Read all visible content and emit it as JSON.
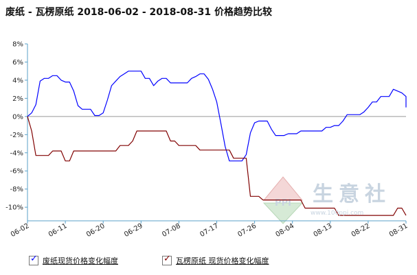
{
  "title": "废纸 - 瓦楞原纸 2018-06-02 - 2018-08-31 价格趋势比较",
  "watermark": {
    "brand": "生意社",
    "url": "www.100ppi.com",
    "logo_text": "PPI"
  },
  "legend": [
    {
      "label": "废纸现货价格变化幅度",
      "color": "#0000ff"
    },
    {
      "label": "瓦楞原纸 现货价格变化幅度",
      "color": "#800000"
    }
  ],
  "chart_data": {
    "type": "line",
    "x_start": "2018-06-02",
    "x_end": "2018-08-31",
    "x_tick_labels": [
      "06-02",
      "06-11",
      "06-20",
      "06-29",
      "07-08",
      "07-17",
      "07-26",
      "08-04",
      "08-13",
      "08-22",
      "08-31"
    ],
    "y_tick_labels": [
      "8%",
      "6%",
      "4%",
      "2%",
      "0%",
      "-2%",
      "-4%",
      "-6%",
      "-8%",
      "-10%"
    ],
    "ylim": [
      -11.5,
      8
    ],
    "grid": false,
    "legend_position": "bottom",
    "series": [
      {
        "name": "废纸现货价格变化幅度",
        "color": "#0000ff",
        "points": [
          [
            "06-02",
            0
          ],
          [
            "06-03",
            0.4
          ],
          [
            "06-04",
            1.3
          ],
          [
            "06-05",
            3.9
          ],
          [
            "06-06",
            4.2
          ],
          [
            "06-07",
            4.2
          ],
          [
            "06-08",
            4.5
          ],
          [
            "06-09",
            4.5
          ],
          [
            "06-10",
            4.0
          ],
          [
            "06-11",
            3.8
          ],
          [
            "06-12",
            3.8
          ],
          [
            "06-13",
            2.8
          ],
          [
            "06-14",
            1.2
          ],
          [
            "06-15",
            0.8
          ],
          [
            "06-16",
            0.8
          ],
          [
            "06-17",
            0.8
          ],
          [
            "06-18",
            0.1
          ],
          [
            "06-19",
            0.1
          ],
          [
            "06-20",
            0.4
          ],
          [
            "06-21",
            1.8
          ],
          [
            "06-22",
            3.4
          ],
          [
            "06-23",
            3.9
          ],
          [
            "06-24",
            4.4
          ],
          [
            "06-25",
            4.7
          ],
          [
            "06-26",
            5.0
          ],
          [
            "06-27",
            5.0
          ],
          [
            "06-28",
            5.0
          ],
          [
            "06-29",
            5.0
          ],
          [
            "06-30",
            4.2
          ],
          [
            "07-01",
            4.2
          ],
          [
            "07-02",
            3.4
          ],
          [
            "07-03",
            3.9
          ],
          [
            "07-04",
            4.2
          ],
          [
            "07-05",
            4.2
          ],
          [
            "07-06",
            3.7
          ],
          [
            "07-07",
            3.7
          ],
          [
            "07-08",
            3.7
          ],
          [
            "07-09",
            3.7
          ],
          [
            "07-10",
            3.7
          ],
          [
            "07-11",
            4.2
          ],
          [
            "07-12",
            4.4
          ],
          [
            "07-13",
            4.7
          ],
          [
            "07-14",
            4.7
          ],
          [
            "07-15",
            4.1
          ],
          [
            "07-16",
            3.0
          ],
          [
            "07-17",
            1.6
          ],
          [
            "07-18",
            -0.8
          ],
          [
            "07-19",
            -3.3
          ],
          [
            "07-20",
            -4.9
          ],
          [
            "07-21",
            -4.9
          ],
          [
            "07-22",
            -4.9
          ],
          [
            "07-23",
            -4.9
          ],
          [
            "07-24",
            -4.2
          ],
          [
            "07-25",
            -1.8
          ],
          [
            "07-26",
            -0.7
          ],
          [
            "07-27",
            -0.5
          ],
          [
            "07-28",
            -0.5
          ],
          [
            "07-29",
            -0.5
          ],
          [
            "07-30",
            -1.4
          ],
          [
            "07-31",
            -2.1
          ],
          [
            "08-01",
            -2.1
          ],
          [
            "08-02",
            -2.1
          ],
          [
            "08-03",
            -1.9
          ],
          [
            "08-04",
            -1.9
          ],
          [
            "08-05",
            -1.9
          ],
          [
            "08-06",
            -1.6
          ],
          [
            "08-07",
            -1.6
          ],
          [
            "08-08",
            -1.6
          ],
          [
            "08-09",
            -1.6
          ],
          [
            "08-10",
            -1.6
          ],
          [
            "08-11",
            -1.6
          ],
          [
            "08-12",
            -1.2
          ],
          [
            "08-13",
            -1.2
          ],
          [
            "08-14",
            -1.0
          ],
          [
            "08-15",
            -1.0
          ],
          [
            "08-16",
            -0.5
          ],
          [
            "08-17",
            0.2
          ],
          [
            "08-18",
            0.2
          ],
          [
            "08-19",
            0.2
          ],
          [
            "08-20",
            0.2
          ],
          [
            "08-21",
            0.5
          ],
          [
            "08-22",
            1.0
          ],
          [
            "08-23",
            1.6
          ],
          [
            "08-24",
            1.6
          ],
          [
            "08-25",
            2.2
          ],
          [
            "08-26",
            2.2
          ],
          [
            "08-27",
            2.2
          ],
          [
            "08-28",
            3.0
          ],
          [
            "08-29",
            2.8
          ],
          [
            "08-30",
            2.6
          ],
          [
            "08-31",
            2.2
          ],
          [
            "09-01",
            1.0
          ]
        ]
      },
      {
        "name": "瓦楞原纸 现货价格变化幅度",
        "color": "#800000",
        "points": [
          [
            "06-02",
            0
          ],
          [
            "06-03",
            -1.6
          ],
          [
            "06-04",
            -4.3
          ],
          [
            "06-05",
            -4.3
          ],
          [
            "06-06",
            -4.3
          ],
          [
            "06-07",
            -4.3
          ],
          [
            "06-08",
            -3.8
          ],
          [
            "06-09",
            -3.8
          ],
          [
            "06-10",
            -3.8
          ],
          [
            "06-11",
            -4.9
          ],
          [
            "06-12",
            -4.9
          ],
          [
            "06-13",
            -3.8
          ],
          [
            "06-14",
            -3.8
          ],
          [
            "06-15",
            -3.8
          ],
          [
            "06-16",
            -3.8
          ],
          [
            "06-17",
            -3.8
          ],
          [
            "06-18",
            -3.8
          ],
          [
            "06-19",
            -3.8
          ],
          [
            "06-20",
            -3.8
          ],
          [
            "06-21",
            -3.8
          ],
          [
            "06-22",
            -3.8
          ],
          [
            "06-23",
            -3.8
          ],
          [
            "06-24",
            -3.2
          ],
          [
            "06-25",
            -3.2
          ],
          [
            "06-26",
            -3.2
          ],
          [
            "06-27",
            -2.7
          ],
          [
            "06-28",
            -1.6
          ],
          [
            "06-29",
            -1.6
          ],
          [
            "06-30",
            -1.6
          ],
          [
            "07-01",
            -1.6
          ],
          [
            "07-02",
            -1.6
          ],
          [
            "07-03",
            -1.6
          ],
          [
            "07-04",
            -1.6
          ],
          [
            "07-05",
            -1.6
          ],
          [
            "07-06",
            -2.7
          ],
          [
            "07-07",
            -2.7
          ],
          [
            "07-08",
            -3.2
          ],
          [
            "07-09",
            -3.2
          ],
          [
            "07-10",
            -3.2
          ],
          [
            "07-11",
            -3.2
          ],
          [
            "07-12",
            -3.2
          ],
          [
            "07-13",
            -3.7
          ],
          [
            "07-14",
            -3.7
          ],
          [
            "07-15",
            -3.7
          ],
          [
            "07-16",
            -3.7
          ],
          [
            "07-17",
            -3.7
          ],
          [
            "07-18",
            -3.7
          ],
          [
            "07-19",
            -3.7
          ],
          [
            "07-20",
            -3.7
          ],
          [
            "07-21",
            -4.6
          ],
          [
            "07-22",
            -4.6
          ],
          [
            "07-23",
            -4.6
          ],
          [
            "07-24",
            -4.6
          ],
          [
            "07-25",
            -8.8
          ],
          [
            "07-26",
            -8.8
          ],
          [
            "07-27",
            -8.8
          ],
          [
            "07-28",
            -9.2
          ],
          [
            "07-29",
            -9.2
          ],
          [
            "07-30",
            -9.2
          ],
          [
            "07-31",
            -9.2
          ],
          [
            "08-01",
            -9.2
          ],
          [
            "08-02",
            -9.2
          ],
          [
            "08-03",
            -9.2
          ],
          [
            "08-04",
            -9.2
          ],
          [
            "08-05",
            -9.2
          ],
          [
            "08-06",
            -9.2
          ],
          [
            "08-07",
            -10.1
          ],
          [
            "08-08",
            -10.1
          ],
          [
            "08-09",
            -10.1
          ],
          [
            "08-10",
            -10.1
          ],
          [
            "08-11",
            -10.1
          ],
          [
            "08-12",
            -10.1
          ],
          [
            "08-13",
            -10.1
          ],
          [
            "08-14",
            -10.1
          ],
          [
            "08-15",
            -10.9
          ],
          [
            "08-16",
            -10.9
          ],
          [
            "08-17",
            -10.9
          ],
          [
            "08-18",
            -10.9
          ],
          [
            "08-19",
            -10.9
          ],
          [
            "08-20",
            -10.9
          ],
          [
            "08-21",
            -10.9
          ],
          [
            "08-22",
            -10.9
          ],
          [
            "08-23",
            -10.9
          ],
          [
            "08-24",
            -10.9
          ],
          [
            "08-25",
            -10.9
          ],
          [
            "08-26",
            -10.9
          ],
          [
            "08-27",
            -10.9
          ],
          [
            "08-28",
            -10.9
          ],
          [
            "08-29",
            -10.1
          ],
          [
            "08-30",
            -10.1
          ],
          [
            "08-31",
            -10.9
          ],
          [
            "09-01",
            -10.9
          ]
        ]
      }
    ]
  }
}
